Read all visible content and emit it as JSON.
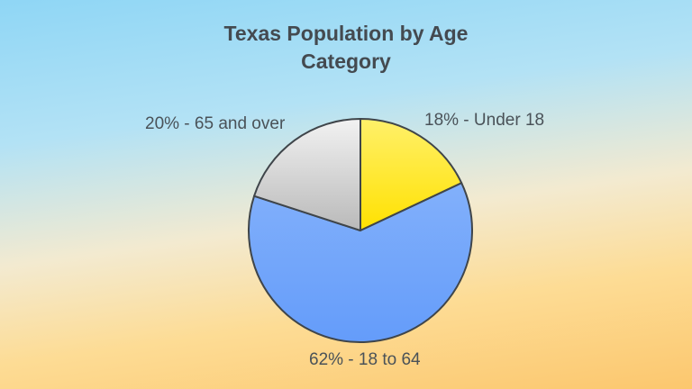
{
  "chart_data": {
    "type": "pie",
    "title": "Texas Population by Age Category",
    "title_lines": [
      "Texas Population by Age",
      "Category"
    ],
    "categories": [
      "Under 18",
      "18 to 64",
      "65 and over"
    ],
    "values": [
      18,
      62,
      20
    ],
    "unit": "%",
    "labels": [
      "18% - Under 18",
      "62% - 18 to 64",
      "20% - 65 and over"
    ],
    "colors": [
      "#ffe93a",
      "#73a6fb",
      "#d2d2d2"
    ],
    "legend": "none (inline labels)"
  }
}
